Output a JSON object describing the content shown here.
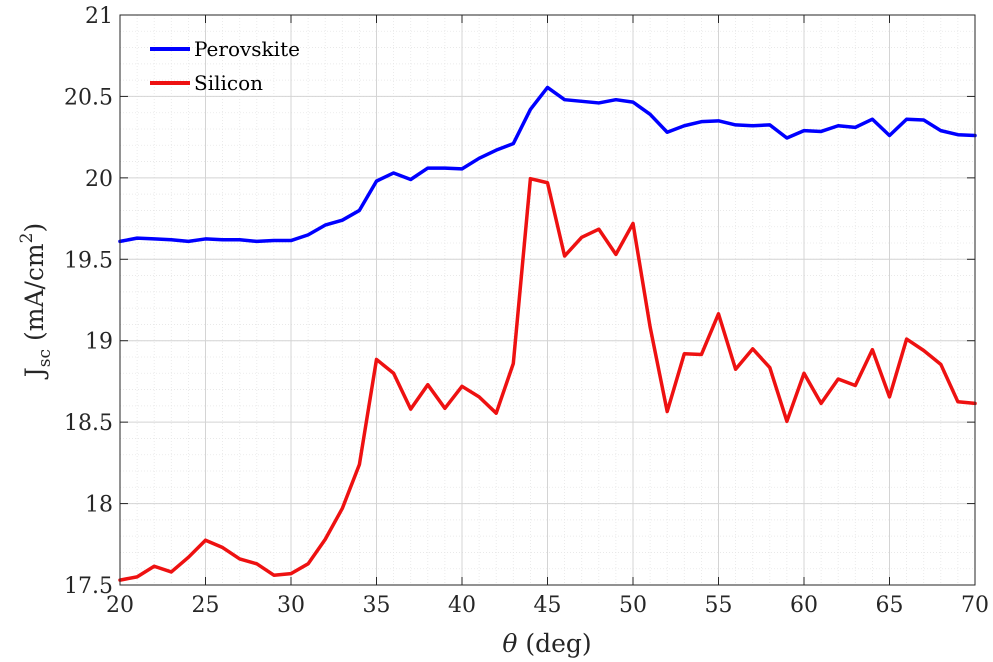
{
  "chart_data": {
    "type": "line",
    "xlabel": {
      "symbol": "θ",
      "text": " (deg)"
    },
    "ylabel": {
      "base": "J",
      "subscript": "sc",
      "text_before_sup": " (mA/cm",
      "superscript": "2",
      "text_after_sup": ")"
    },
    "xlim": [
      20,
      70
    ],
    "ylim": [
      17.5,
      21
    ],
    "xticks": [
      20,
      25,
      30,
      35,
      40,
      45,
      50,
      55,
      60,
      65,
      70
    ],
    "xtick_labels": [
      "20",
      "25",
      "30",
      "35",
      "40",
      "45",
      "50",
      "55",
      "60",
      "65",
      "70"
    ],
    "yticks": [
      17.5,
      18,
      18.5,
      19,
      19.5,
      20,
      20.5,
      21
    ],
    "ytick_labels": [
      "17.5",
      "18",
      "18.5",
      "19",
      "19.5",
      "20",
      "20.5",
      "21"
    ],
    "grid": true,
    "minor_grid": true,
    "legend_position": "top-left",
    "x": [
      20,
      21,
      22,
      23,
      24,
      25,
      26,
      27,
      28,
      29,
      30,
      31,
      32,
      33,
      34,
      35,
      36,
      37,
      38,
      39,
      40,
      41,
      42,
      43,
      44,
      45,
      46,
      47,
      48,
      49,
      50,
      51,
      52,
      53,
      54,
      55,
      56,
      57,
      58,
      59,
      60,
      61,
      62,
      63,
      64,
      65,
      66,
      67,
      68,
      69,
      70
    ],
    "series": [
      {
        "name": "Perovskite",
        "color": "#0000ff",
        "values": [
          19.61,
          19.63,
          19.625,
          19.62,
          19.61,
          19.625,
          19.62,
          19.62,
          19.61,
          19.615,
          19.615,
          19.65,
          19.71,
          19.74,
          19.8,
          19.98,
          20.03,
          19.99,
          20.06,
          20.06,
          20.055,
          20.12,
          20.17,
          20.21,
          20.42,
          20.555,
          20.48,
          20.47,
          20.46,
          20.48,
          20.465,
          20.39,
          20.28,
          20.32,
          20.345,
          20.35,
          20.325,
          20.32,
          20.325,
          20.245,
          20.29,
          20.285,
          20.32,
          20.31,
          20.36,
          20.26,
          20.36,
          20.355,
          20.29,
          20.265,
          20.26
        ]
      },
      {
        "name": "Silicon",
        "color": "#ee1111",
        "values": [
          17.53,
          17.55,
          17.615,
          17.58,
          17.67,
          17.775,
          17.73,
          17.66,
          17.63,
          17.56,
          17.57,
          17.63,
          17.78,
          17.97,
          18.24,
          18.885,
          18.8,
          18.58,
          18.73,
          18.585,
          18.72,
          18.655,
          18.555,
          18.86,
          19.995,
          19.97,
          19.52,
          19.635,
          19.685,
          19.53,
          19.72,
          19.085,
          18.565,
          18.92,
          18.915,
          19.165,
          18.825,
          18.95,
          18.835,
          18.505,
          18.8,
          18.615,
          18.765,
          18.725,
          18.945,
          18.655,
          19.01,
          18.94,
          18.855,
          18.625,
          18.615
        ]
      }
    ]
  }
}
